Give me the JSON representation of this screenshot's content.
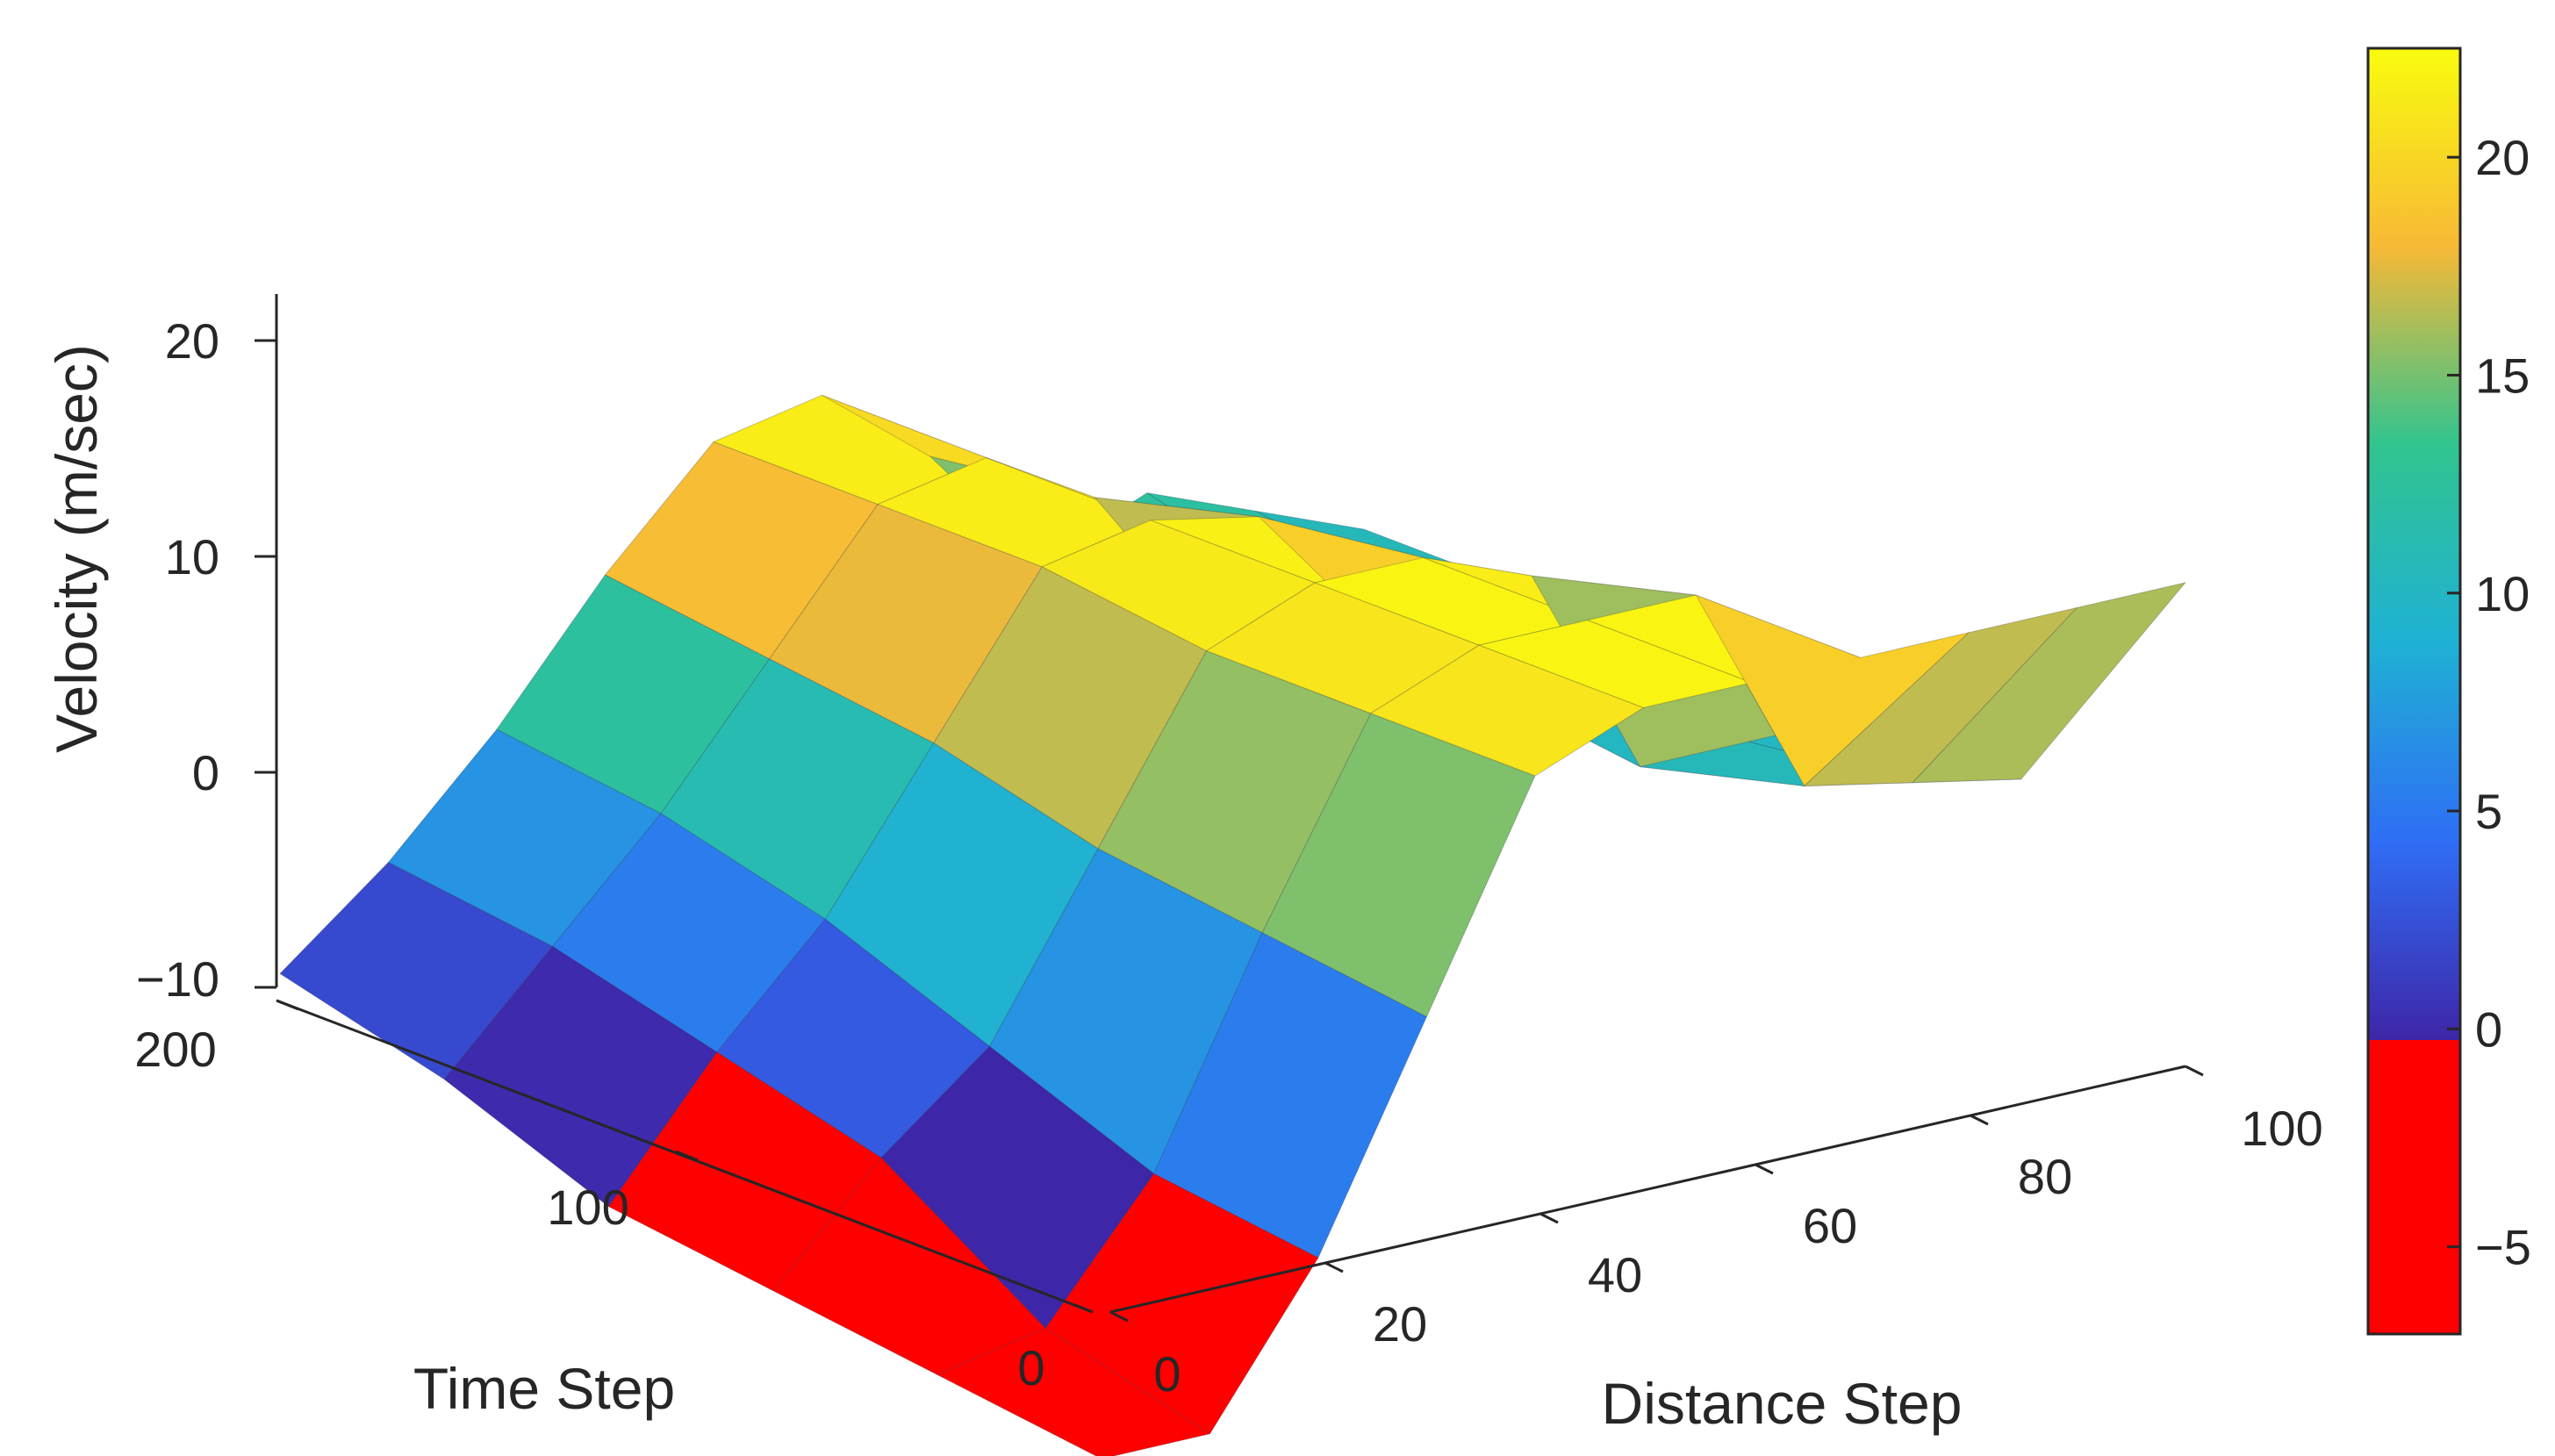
{
  "chart_data": {
    "type": "surface",
    "zlabel": "Velocity (m/sec)",
    "xlabel": "Distance Step",
    "ylabel": "Time Step",
    "x_ticks": [
      "0",
      "20",
      "40",
      "60",
      "80",
      "100"
    ],
    "y_ticks": [
      "0",
      "100",
      "200"
    ],
    "z_ticks": [
      "−10",
      "0",
      "10",
      "20"
    ],
    "xlim": [
      0,
      100
    ],
    "ylim": [
      0,
      200
    ],
    "zlim": [
      -10,
      20
    ],
    "colorbar": {
      "ticks": [
        "−5",
        "0",
        "5",
        "10",
        "15",
        "20"
      ],
      "range": [
        -7,
        22.5
      ],
      "negative_color": "#ff0000",
      "colormap": "parula"
    },
    "x_grid": [
      0,
      10,
      20,
      30,
      40,
      50,
      60,
      70,
      80,
      90,
      100
    ],
    "y_grid": [
      0,
      40,
      80,
      120,
      160,
      200
    ],
    "z_values": [
      [
        -7,
        -7,
        0,
        10,
        20,
        22,
        22,
        22,
        22,
        22,
        22
      ],
      [
        -6,
        -5,
        1,
        11,
        20,
        22,
        22,
        22,
        12,
        11,
        10
      ],
      [
        -5,
        0,
        4,
        12,
        20,
        22,
        22,
        20,
        10,
        10,
        10
      ],
      [
        -4,
        2,
        7,
        14,
        21,
        22,
        21,
        15,
        11,
        10,
        10
      ],
      [
        -1,
        4,
        9,
        15,
        21,
        22,
        19,
        12,
        12,
        11,
        10
      ],
      [
        1,
        5,
        10,
        16,
        21,
        22,
        18,
        12,
        14,
        12,
        10
      ]
    ]
  }
}
